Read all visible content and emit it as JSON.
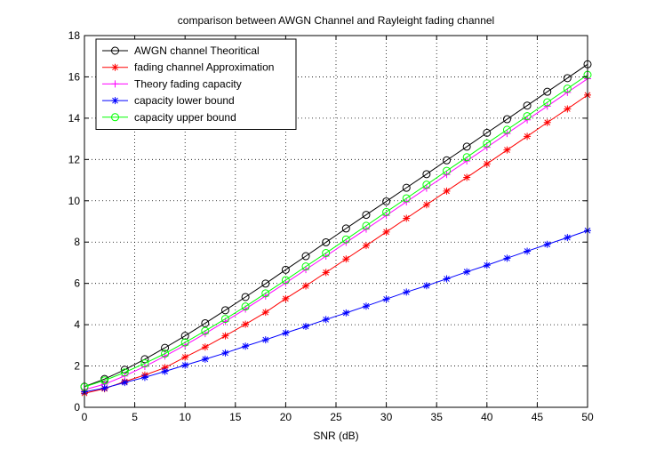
{
  "chart_data": {
    "type": "line",
    "title": "comparison between AWGN Channel and Rayleight fading channel",
    "xlabel": "SNR (dB)",
    "ylabel": "",
    "xlim": [
      0,
      50
    ],
    "ylim": [
      0,
      18
    ],
    "xticks": [
      0,
      5,
      10,
      15,
      20,
      25,
      30,
      35,
      40,
      45,
      50
    ],
    "yticks": [
      0,
      2,
      4,
      6,
      8,
      10,
      12,
      14,
      16,
      18
    ],
    "grid": true,
    "legend_position": "top-left",
    "x": [
      0,
      2,
      4,
      6,
      8,
      10,
      12,
      14,
      16,
      18,
      20,
      22,
      24,
      26,
      28,
      30,
      32,
      34,
      36,
      38,
      40,
      42,
      44,
      46,
      48,
      50
    ],
    "series": [
      {
        "name": "AWGN channel Theoritical",
        "color": "#000000",
        "marker": "circle",
        "values": [
          1.0,
          1.37,
          1.82,
          2.33,
          2.88,
          3.46,
          4.07,
          4.7,
          5.34,
          5.99,
          6.66,
          7.32,
          7.99,
          8.66,
          9.32,
          9.97,
          10.63,
          11.29,
          11.96,
          12.62,
          13.29,
          13.95,
          14.61,
          15.28,
          15.94,
          16.61
        ]
      },
      {
        "name": "fading channel Approximation",
        "color": "#ff0000",
        "marker": "star",
        "values": [
          0.68,
          0.9,
          1.25,
          1.56,
          1.92,
          2.43,
          2.92,
          3.46,
          4.02,
          4.6,
          5.26,
          5.88,
          6.53,
          7.18,
          7.83,
          8.49,
          9.15,
          9.81,
          10.47,
          11.13,
          11.79,
          12.46,
          13.12,
          13.79,
          14.45,
          15.12
        ]
      },
      {
        "name": "Theory fading capacity",
        "color": "#ff00ff",
        "marker": "plus",
        "values": [
          0.85,
          1.12,
          1.52,
          1.98,
          2.48,
          3.01,
          3.57,
          4.16,
          4.76,
          5.39,
          6.02,
          6.67,
          7.32,
          7.98,
          8.63,
          9.29,
          9.95,
          10.61,
          11.27,
          11.93,
          12.59,
          13.26,
          13.92,
          14.58,
          15.25,
          15.91
        ]
      },
      {
        "name": "capacity lower bound",
        "color": "#0000ff",
        "marker": "star",
        "values": [
          0.75,
          0.93,
          1.2,
          1.45,
          1.74,
          2.04,
          2.33,
          2.63,
          2.96,
          3.27,
          3.6,
          3.92,
          4.25,
          4.57,
          4.9,
          5.24,
          5.58,
          5.89,
          6.22,
          6.56,
          6.88,
          7.22,
          7.56,
          7.89,
          8.22,
          8.56
        ]
      },
      {
        "name": "capacity upper bound",
        "color": "#00ff00",
        "marker": "circle",
        "values": [
          0.99,
          1.3,
          1.69,
          2.13,
          2.6,
          3.14,
          3.7,
          4.28,
          4.88,
          5.52,
          6.16,
          6.82,
          7.47,
          8.13,
          8.79,
          9.46,
          10.12,
          10.78,
          11.45,
          12.11,
          12.78,
          13.44,
          14.1,
          14.77,
          15.43,
          16.1
        ]
      }
    ]
  }
}
